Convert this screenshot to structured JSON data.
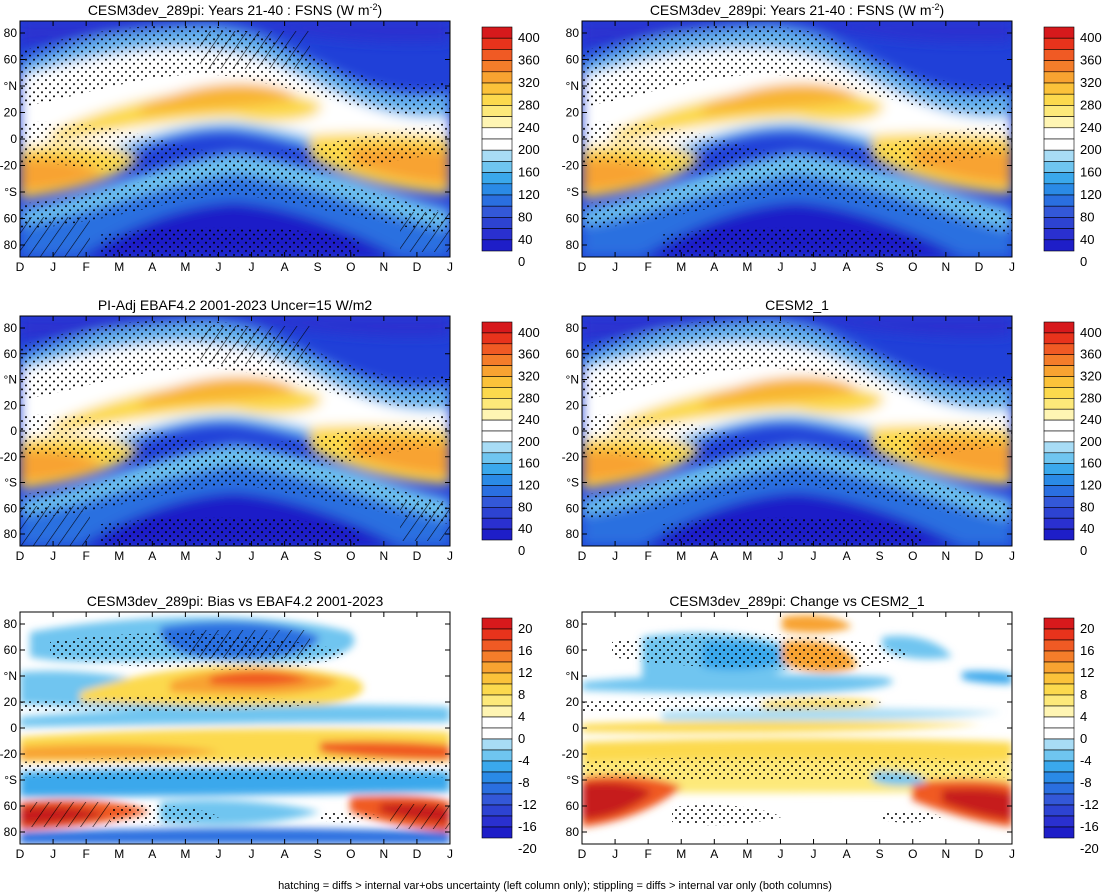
{
  "footer": "hatching = diffs > internal var+obs uncertainty (left column only); stippling = diffs > internal var only (both columns)",
  "months": [
    "D",
    "J",
    "F",
    "M",
    "A",
    "M",
    "J",
    "J",
    "A",
    "S",
    "O",
    "N",
    "D",
    "J"
  ],
  "lat_ticks": [
    "80",
    "60",
    "°N",
    "20",
    "0",
    "-20",
    "°S",
    "60",
    "80"
  ],
  "colorbars": {
    "field": {
      "labels": [
        "400",
        "360",
        "320",
        "280",
        "240",
        "200",
        "160",
        "120",
        "80",
        "40",
        "0"
      ],
      "colors": [
        "#d7191c",
        "#e8331c",
        "#f05a24",
        "#f47d2a",
        "#f8a331",
        "#fbc23a",
        "#fcd94d",
        "#fde97a",
        "#fff5b3",
        "#ffffff",
        "#ffffff",
        "#a8dcf5",
        "#6fc5f0",
        "#3aa8ec",
        "#2a8ae6",
        "#2a6fe0",
        "#3358d8",
        "#2d43d2",
        "#2a30d0",
        "#1e1ec8"
      ]
    },
    "diff": {
      "labels": [
        "20",
        "16",
        "12",
        "8",
        "4",
        "0",
        "-4",
        "-8",
        "-12",
        "-16",
        "-20"
      ],
      "colors": [
        "#d7191c",
        "#e8331c",
        "#f05a24",
        "#f47d2a",
        "#f8a331",
        "#fbc23a",
        "#fcd94d",
        "#fde97a",
        "#fff5b3",
        "#ffffff",
        "#ffffff",
        "#a8dcf5",
        "#6fc5f0",
        "#3aa8ec",
        "#2a8ae6",
        "#2a6fe0",
        "#3358d8",
        "#2d43d2",
        "#2a30d0",
        "#1e1ec8"
      ]
    }
  },
  "chart_data": [
    {
      "type": "heatmap",
      "title": "CESM3dev_289pi: Years 21-40 : FSNS (W m",
      "title_sup": "-2",
      "title_end": ")",
      "kind": "field",
      "hatch": true
    },
    {
      "type": "heatmap",
      "title": "CESM3dev_289pi: Years 21-40 : FSNS (W m",
      "title_sup": "-2",
      "title_end": ")",
      "kind": "field",
      "hatch": false
    },
    {
      "type": "heatmap",
      "title": "PI-Adj EBAF4.2 2001-2023 Uncer=15 W/m2",
      "title_sup": "",
      "title_end": "",
      "kind": "field",
      "hatch": true
    },
    {
      "type": "heatmap",
      "title": "CESM2_1",
      "title_sup": "",
      "title_end": "",
      "kind": "field",
      "hatch": false
    },
    {
      "type": "heatmap",
      "title": "CESM3dev_289pi: Bias vs EBAF4.2 2001-2023",
      "title_sup": "",
      "title_end": "",
      "kind": "diff",
      "hatch": true
    },
    {
      "type": "heatmap",
      "title": "CESM3dev_289pi: Change vs CESM2_1",
      "title_sup": "",
      "title_end": "",
      "kind": "diff",
      "hatch": false
    }
  ]
}
